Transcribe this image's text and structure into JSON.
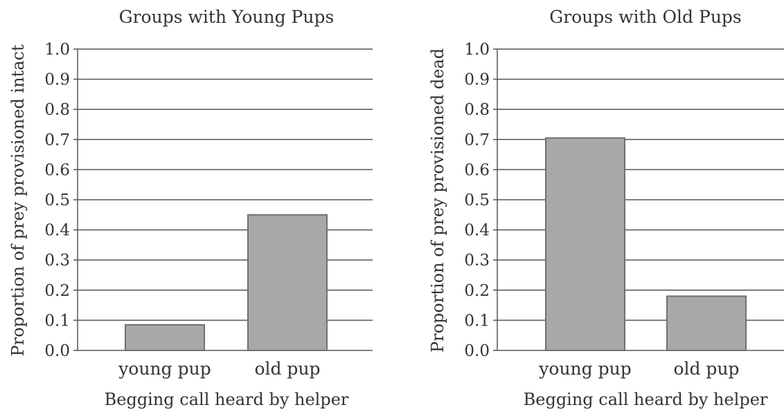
{
  "chart_data": [
    {
      "type": "bar",
      "title": "Groups with Young Pups",
      "xlabel": "Begging call heard by helper",
      "ylabel": "Proportion of prey provisioned intact",
      "categories": [
        "young pup",
        "old pup"
      ],
      "values": [
        0.085,
        0.45
      ],
      "ylim": [
        0,
        1.0
      ],
      "yticks": [
        "0.0",
        "0.1",
        "0.2",
        "0.3",
        "0.4",
        "0.5",
        "0.6",
        "0.7",
        "0.8",
        "0.9",
        "1.0"
      ],
      "grid": true,
      "bar_color": "#a8a8a8"
    },
    {
      "type": "bar",
      "title": "Groups with Old Pups",
      "xlabel": "Begging call heard by helper",
      "ylabel": "Proportion of prey provisioned dead",
      "categories": [
        "young pup",
        "old pup"
      ],
      "values": [
        0.705,
        0.18
      ],
      "ylim": [
        0,
        1.0
      ],
      "yticks": [
        "0.0",
        "0.1",
        "0.2",
        "0.3",
        "0.4",
        "0.5",
        "0.6",
        "0.7",
        "0.8",
        "0.9",
        "1.0"
      ],
      "grid": true,
      "bar_color": "#a8a8a8"
    }
  ]
}
